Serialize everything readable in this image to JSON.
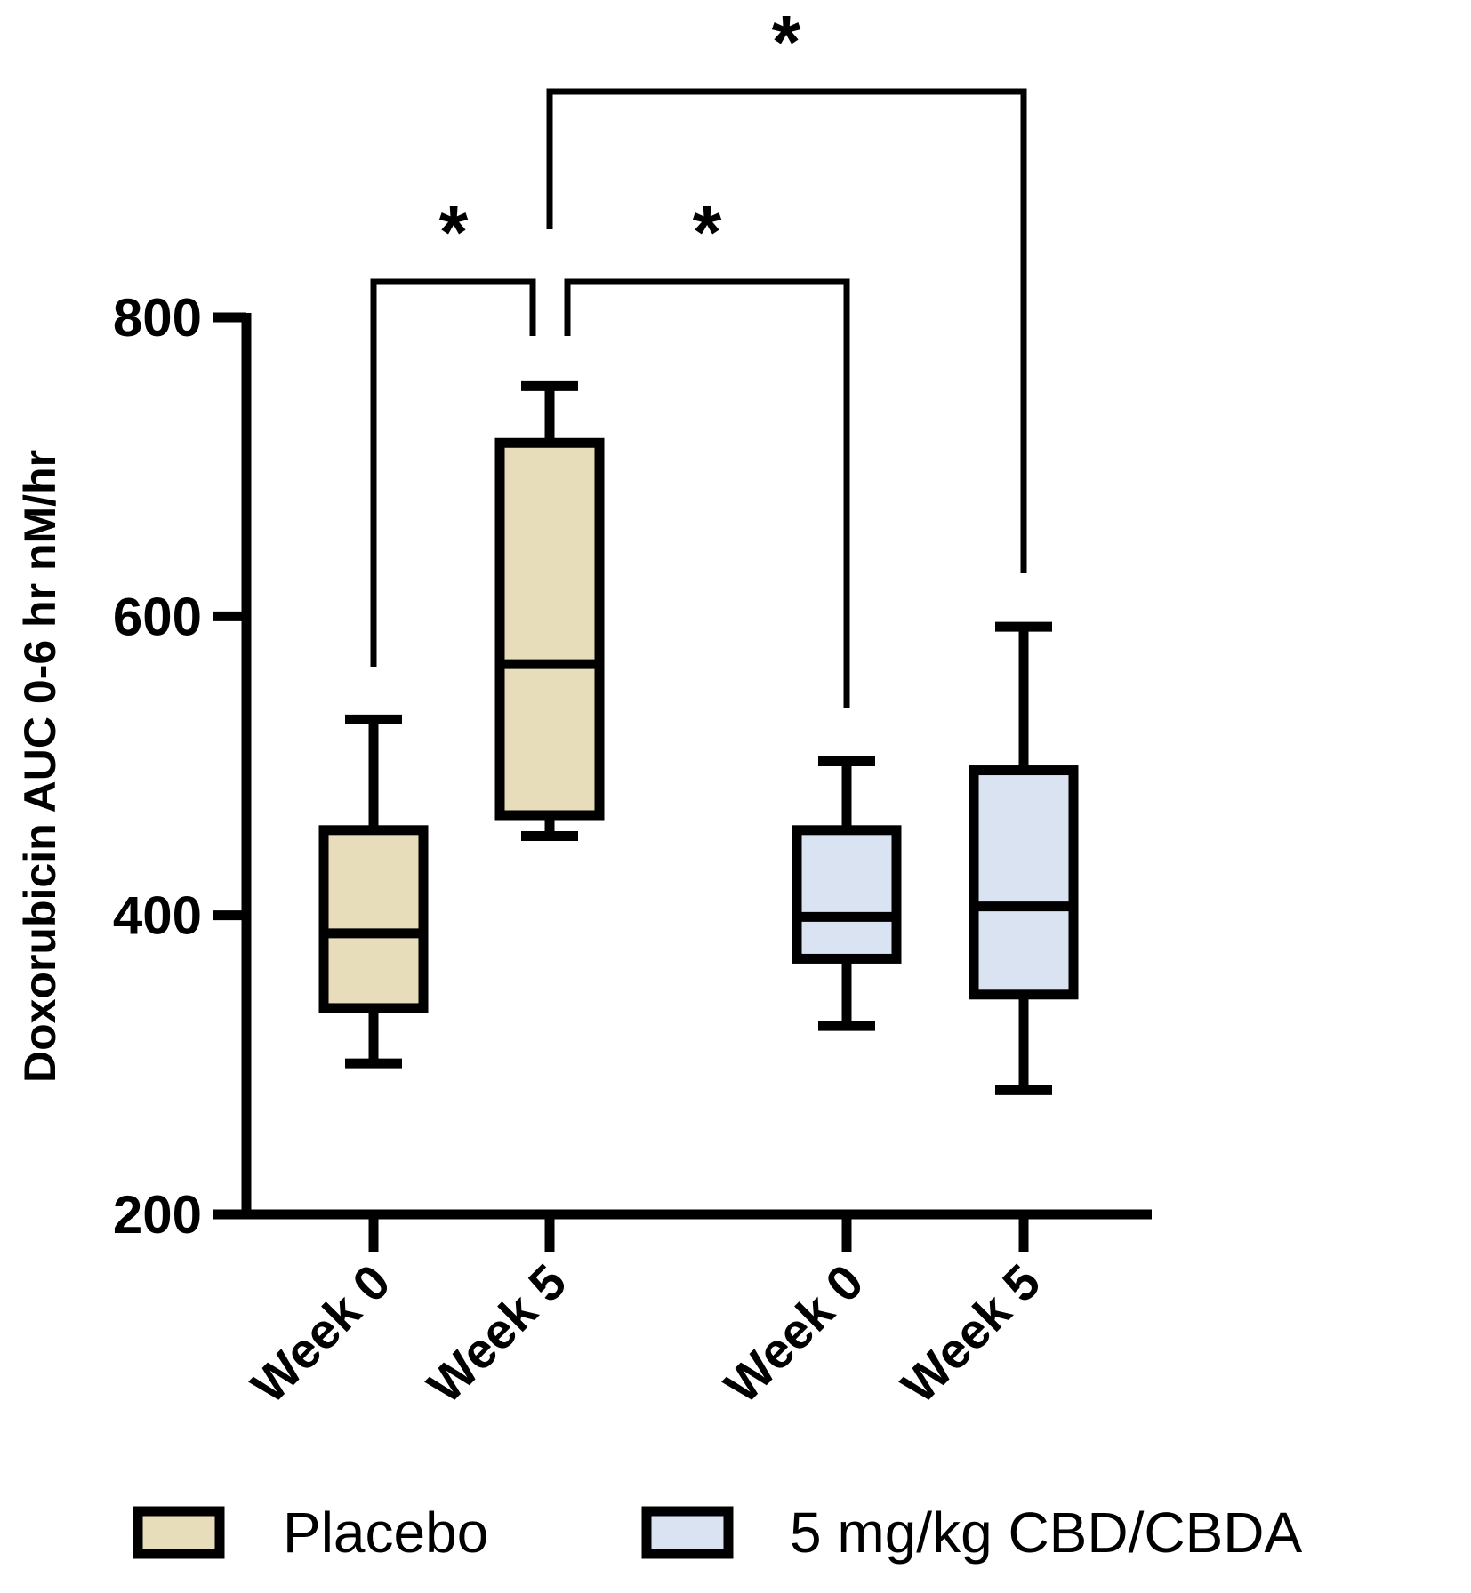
{
  "chart_data": {
    "type": "box",
    "title": "",
    "ylabel": "Doxorubicin AUC 0-6 hr nM/hr",
    "xlabel": "",
    "ylim": [
      200,
      800
    ],
    "yticks": [
      "200",
      "400",
      "600",
      "800"
    ],
    "categories": [
      "Week 0",
      "Week 5",
      "Week 0",
      "Week 5"
    ],
    "groups": [
      {
        "name": "Placebo",
        "color": "#E8DDBA"
      },
      {
        "name": "5 mg/kg CBD/CBDA",
        "color": "#DAE3F1"
      }
    ],
    "boxes": [
      {
        "category": "Week 0",
        "group": 0,
        "min": 301,
        "q1": 338,
        "median": 388,
        "q3": 457,
        "max": 531
      },
      {
        "category": "Week 5",
        "group": 0,
        "min": 453,
        "q1": 467,
        "median": 568,
        "q3": 716,
        "max": 754
      },
      {
        "category": "Week 0",
        "group": 1,
        "min": 326,
        "q1": 371,
        "median": 399,
        "q3": 457,
        "max": 503
      },
      {
        "category": "Week 5",
        "group": 1,
        "min": 283,
        "q1": 347,
        "median": 406,
        "q3": 497,
        "max": 593
      }
    ],
    "significance": [
      {
        "from": 0,
        "to": 1,
        "label": "*"
      },
      {
        "from": 1,
        "to": 2,
        "label": "*"
      },
      {
        "from": 1,
        "to": 3,
        "label": "*"
      }
    ],
    "legend": {
      "position": "bottom"
    },
    "grid": false
  }
}
